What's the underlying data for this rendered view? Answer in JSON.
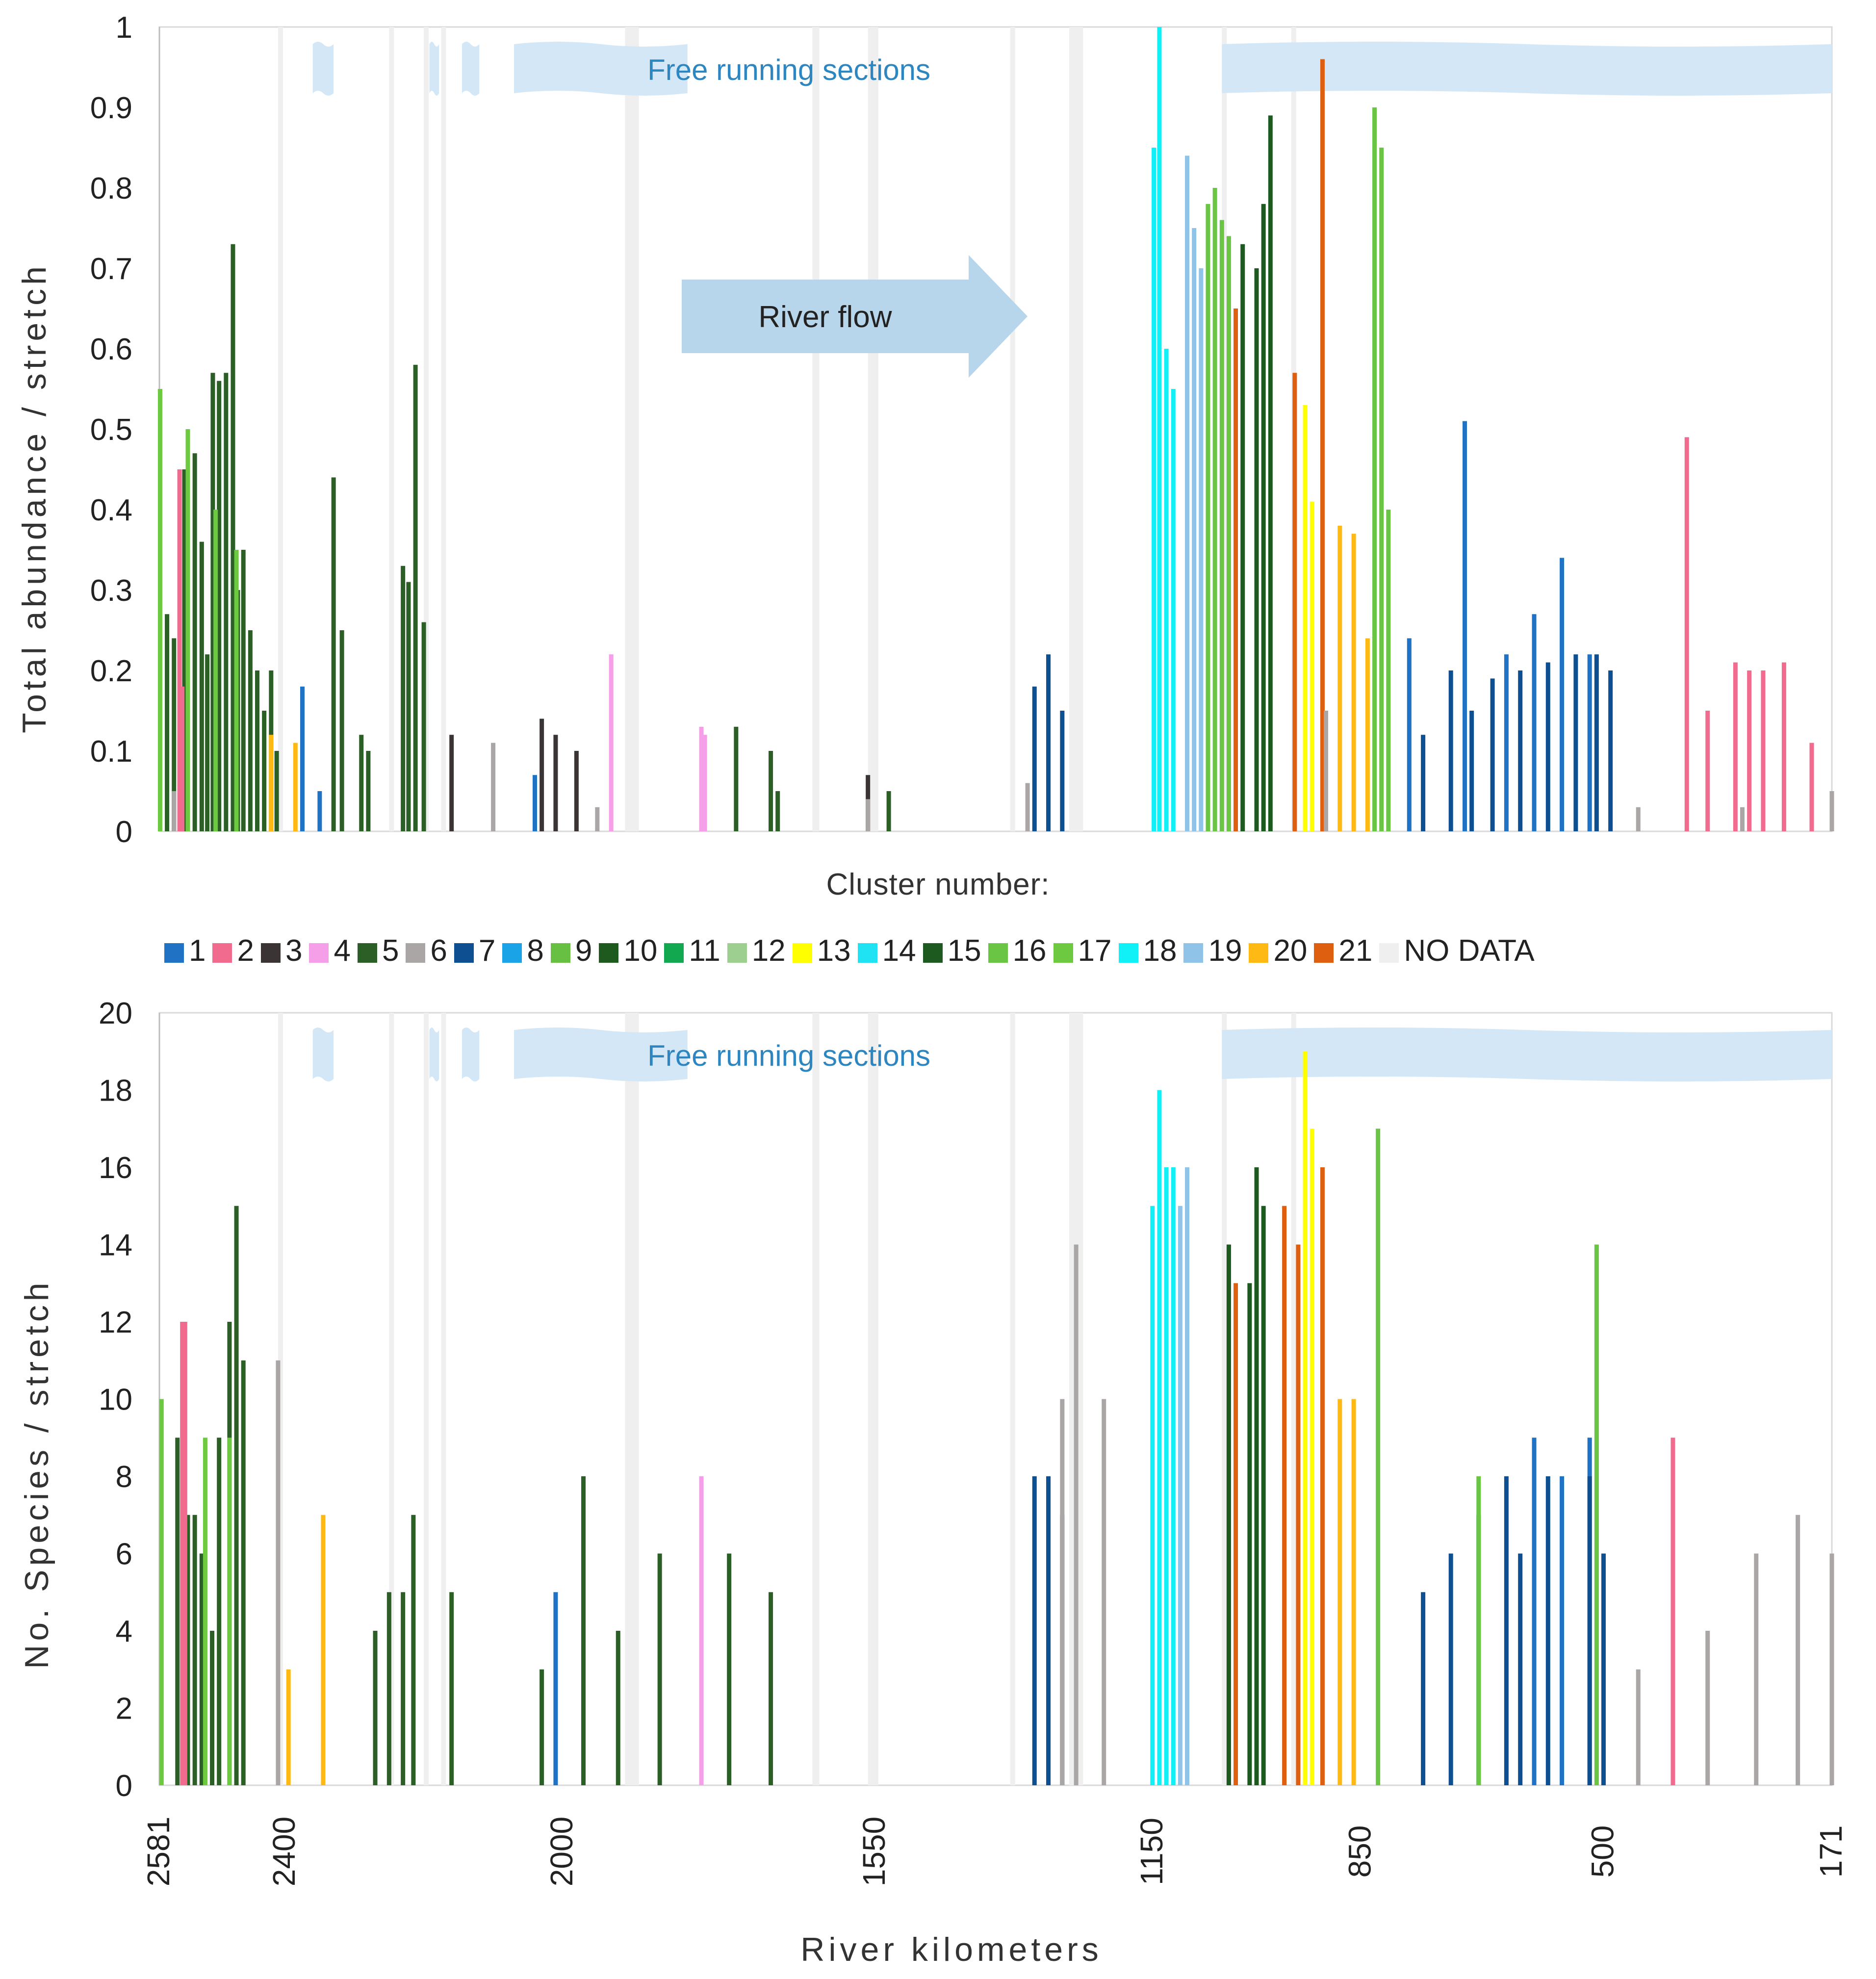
{
  "chart_data": [
    {
      "type": "bar",
      "panel": "top",
      "ylabel": "Total abundance / stretch",
      "xlabel": "",
      "ylim": [
        0,
        1
      ],
      "yticks": [
        "0",
        "0.1",
        "0.2",
        "0.3",
        "0.4",
        "0.5",
        "0.6",
        "0.7",
        "0.8",
        "0.9",
        "1"
      ],
      "annotations": {
        "free_running": "Free running sections",
        "flow": "River flow"
      },
      "series": [
        {
          "cluster": "5",
          "x": [
            2570,
            2560,
            2545,
            2530,
            2520,
            2512,
            2504,
            2495,
            2485,
            2475,
            2468,
            2460,
            2450,
            2440,
            2430,
            2420,
            2412,
            2330,
            2318,
            2290,
            2280,
            2230,
            2222,
            2212,
            2200,
            1750,
            1700,
            1690,
            1530
          ],
          "values": [
            0.27,
            0.24,
            0.45,
            0.47,
            0.36,
            0.22,
            0.57,
            0.56,
            0.57,
            0.73,
            0.3,
            0.35,
            0.25,
            0.2,
            0.15,
            0.2,
            0.1,
            0.44,
            0.25,
            0.12,
            0.1,
            0.33,
            0.31,
            0.58,
            0.26,
            0.13,
            0.1,
            0.05,
            0.05
          ]
        },
        {
          "cluster": "2",
          "x": [
            2552,
            2548
          ],
          "values": [
            0.45,
            0.18
          ]
        },
        {
          "cluster": "17",
          "x": [
            2580,
            2540,
            2500,
            2470
          ],
          "values": [
            0.55,
            0.5,
            0.4,
            0.35
          ]
        },
        {
          "cluster": "3",
          "x": [
            2160,
            2030,
            2010,
            1980,
            1560
          ],
          "values": [
            0.12,
            0.14,
            0.12,
            0.1,
            0.07
          ]
        },
        {
          "cluster": "4",
          "x": [
            1930,
            1800,
            1795
          ],
          "values": [
            0.22,
            0.13,
            0.12
          ]
        },
        {
          "cluster": "1",
          "x": [
            2375,
            2350,
            2040,
            780,
            700,
            640,
            600,
            560,
            520
          ],
          "values": [
            0.18,
            0.05,
            0.07,
            0.24,
            0.51,
            0.22,
            0.27,
            0.34,
            0.22
          ]
        },
        {
          "cluster": "7",
          "x": [
            1320,
            1300,
            1280,
            760,
            720,
            690,
            660,
            620,
            580,
            540,
            510,
            490
          ],
          "values": [
            0.18,
            0.22,
            0.15,
            0.12,
            0.2,
            0.15,
            0.19,
            0.2,
            0.21,
            0.22,
            0.22,
            0.2
          ]
        },
        {
          "cluster": "20",
          "x": [
            2420,
            2385,
            880,
            860,
            840
          ],
          "values": [
            0.12,
            0.11,
            0.38,
            0.37,
            0.24
          ]
        },
        {
          "cluster": "18",
          "x": [
            1148,
            1140,
            1130,
            1120
          ],
          "values": [
            0.85,
            1.0,
            0.6,
            0.55
          ]
        },
        {
          "cluster": "19",
          "x": [
            1100,
            1090,
            1080
          ],
          "values": [
            0.84,
            0.75,
            0.7
          ]
        },
        {
          "cluster": "16",
          "x": [
            1070,
            1060,
            1050,
            1040,
            830,
            820,
            810
          ],
          "values": [
            0.78,
            0.8,
            0.76,
            0.74,
            0.9,
            0.85,
            0.4
          ]
        },
        {
          "cluster": "15",
          "x": [
            1020,
            1000,
            990,
            980
          ],
          "values": [
            0.73,
            0.7,
            0.78,
            0.89
          ]
        },
        {
          "cluster": "21",
          "x": [
            1030,
            945,
            905
          ],
          "values": [
            0.65,
            0.57,
            0.96
          ]
        },
        {
          "cluster": "13",
          "x": [
            930,
            920
          ],
          "values": [
            0.53,
            0.41
          ]
        },
        {
          "cluster": "2",
          "x": [
            380,
            350,
            310,
            290,
            270,
            240,
            200
          ],
          "values": [
            0.49,
            0.15,
            0.21,
            0.2,
            0.2,
            0.21,
            0.11
          ]
        },
        {
          "cluster": "6",
          "x": [
            2560,
            2100,
            1950,
            1560,
            1330,
            900,
            450,
            300,
            171
          ],
          "values": [
            0.05,
            0.11,
            0.03,
            0.04,
            0.06,
            0.15,
            0.03,
            0.03,
            0.05
          ]
        }
      ]
    },
    {
      "type": "bar",
      "panel": "bottom",
      "ylabel": "No. Species / stretch",
      "xlabel": "River kilometers",
      "ylim": [
        0,
        20
      ],
      "yticks": [
        "0",
        "2",
        "4",
        "6",
        "8",
        "10",
        "12",
        "14",
        "16",
        "18",
        "20"
      ],
      "xticks": [
        "2581",
        "2400",
        "2000",
        "1550",
        "1150",
        "850",
        "500",
        "171"
      ],
      "series": [
        {
          "cluster": "5",
          "x": [
            2555,
            2540,
            2530,
            2520,
            2505,
            2495,
            2480,
            2470,
            2460,
            2270,
            2250,
            2230,
            2215,
            2160,
            2030,
            1970,
            1920,
            1860,
            1760,
            1700
          ],
          "values": [
            9,
            7,
            7,
            6,
            4,
            9,
            12,
            15,
            11,
            4,
            5,
            5,
            7,
            5,
            3,
            8,
            4,
            6,
            6,
            5
          ]
        },
        {
          "cluster": "2",
          "x": [
            2548,
            2544,
            400
          ],
          "values": [
            12,
            12,
            9
          ]
        },
        {
          "cluster": "17",
          "x": [
            2578,
            2515,
            2480
          ],
          "values": [
            10,
            9,
            9
          ]
        },
        {
          "cluster": "4",
          "x": [
            1800
          ],
          "values": [
            8
          ]
        },
        {
          "cluster": "20",
          "x": [
            2395,
            2345,
            880,
            860
          ],
          "values": [
            3,
            7,
            10,
            10
          ]
        },
        {
          "cluster": "1",
          "x": [
            2010,
            600,
            560,
            520
          ],
          "values": [
            5,
            9,
            8,
            9
          ]
        },
        {
          "cluster": "7",
          "x": [
            1320,
            1300,
            1280,
            760,
            720,
            680,
            640,
            620,
            580,
            520,
            500
          ],
          "values": [
            8,
            8,
            7,
            5,
            6,
            7,
            8,
            6,
            8,
            8,
            6
          ]
        },
        {
          "cluster": "18",
          "x": [
            1150,
            1140,
            1130,
            1120
          ],
          "values": [
            15,
            18,
            16,
            16
          ]
        },
        {
          "cluster": "19",
          "x": [
            1110,
            1100
          ],
          "values": [
            15,
            16
          ]
        },
        {
          "cluster": "15",
          "x": [
            1040,
            1010,
            1000,
            990
          ],
          "values": [
            14,
            13,
            16,
            15
          ]
        },
        {
          "cluster": "21",
          "x": [
            1030,
            960,
            940,
            905
          ],
          "values": [
            13,
            15,
            14,
            16
          ]
        },
        {
          "cluster": "13",
          "x": [
            930,
            920
          ],
          "values": [
            19,
            17
          ]
        },
        {
          "cluster": "16",
          "x": [
            825,
            680,
            510
          ],
          "values": [
            17,
            8,
            14
          ]
        },
        {
          "cluster": "6",
          "x": [
            2410,
            1280,
            1260,
            1220,
            450,
            350,
            280,
            220,
            171
          ],
          "values": [
            11,
            10,
            14,
            10,
            3,
            4,
            6,
            7,
            6
          ]
        }
      ]
    }
  ],
  "legend": {
    "title": "Cluster number:",
    "items": [
      {
        "label": "1",
        "color": "#1f72c4"
      },
      {
        "label": "2",
        "color": "#f06b8d"
      },
      {
        "label": "3",
        "color": "#3b3435"
      },
      {
        "label": "4",
        "color": "#f59fe8"
      },
      {
        "label": "5",
        "color": "#2c5f26"
      },
      {
        "label": "6",
        "color": "#aaa6a6"
      },
      {
        "label": "7",
        "color": "#0e4f92"
      },
      {
        "label": "8",
        "color": "#1ba3e7"
      },
      {
        "label": "9",
        "color": "#68c043"
      },
      {
        "label": "10",
        "color": "#1e5a1e"
      },
      {
        "label": "11",
        "color": "#12a84f"
      },
      {
        "label": "12",
        "color": "#9ccf90"
      },
      {
        "label": "13",
        "color": "#ffff00"
      },
      {
        "label": "14",
        "color": "#1fe3f2"
      },
      {
        "label": "15",
        "color": "#1d5a1f"
      },
      {
        "label": "16",
        "color": "#6bc545"
      },
      {
        "label": "17",
        "color": "#6dc93f"
      },
      {
        "label": "18",
        "color": "#0ff0f7"
      },
      {
        "label": "19",
        "color": "#8fc3e7"
      },
      {
        "label": "20",
        "color": "#ffb914"
      },
      {
        "label": "21",
        "color": "#de5f10"
      },
      {
        "label": "NO DATA",
        "color": "#efefef"
      }
    ]
  },
  "no_data_bands": [
    [
      2410,
      2405
    ],
    [
      2250,
      2246
    ],
    [
      2200,
      2196
    ],
    [
      2175,
      2172
    ],
    [
      1910,
      1890
    ],
    [
      1640,
      1630
    ],
    [
      1560,
      1545
    ],
    [
      1355,
      1352
    ],
    [
      1270,
      1250
    ],
    [
      1050,
      1046
    ],
    [
      950,
      946
    ]
  ],
  "free_running_sections": [
    [
      2360,
      2330
    ],
    [
      2192,
      2178
    ],
    [
      2145,
      2120
    ],
    [
      2070,
      1820
    ],
    [
      1050,
      171
    ]
  ]
}
